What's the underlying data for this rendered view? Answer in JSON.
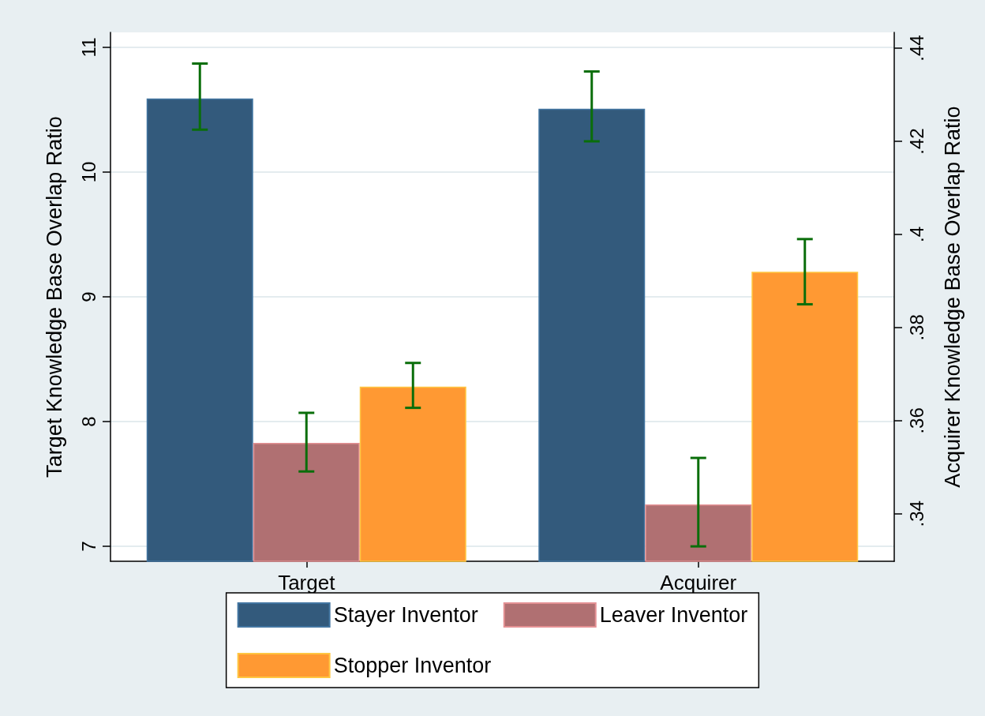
{
  "chart_data": {
    "type": "bar",
    "categories": [
      "Target",
      "Acquirer"
    ],
    "ylabel": "Target Knowledge Base Overlap Ratio",
    "y2label": "Acquirer Knowledge Base Overlap Ratio",
    "ylim": [
      6.88,
      11.12
    ],
    "yticks": [
      7,
      8,
      9,
      10,
      11
    ],
    "y2lim": [
      0.3298,
      0.4434
    ],
    "y2ticks": [
      {
        "value": 0.34,
        "label": ".34"
      },
      {
        "value": 0.36,
        "label": ".36"
      },
      {
        "value": 0.38,
        "label": ".38"
      },
      {
        "value": 0.4,
        "label": ".4"
      },
      {
        "value": 0.42,
        "label": ".42"
      },
      {
        "value": 0.44,
        "label": ".44"
      }
    ],
    "series": [
      {
        "name": "Stayer Inventor",
        "color": "#335a7c",
        "values": [
          10.59,
          null
        ],
        "errors": [
          [
            10.34,
            10.87
          ],
          null
        ]
      },
      {
        "name": "Leaver Inventor",
        "color": "#b07072",
        "values": [
          7.83,
          null
        ],
        "errors": [
          [
            7.6,
            8.07
          ],
          null
        ]
      },
      {
        "name": "Stopper Inventor",
        "color": "#ff9933",
        "values": [
          8.28,
          null
        ],
        "errors": [
          [
            8.11,
            8.47
          ],
          null
        ]
      },
      {
        "color": "#335a7c",
        "axis": "y2",
        "values": [
          null,
          0.427
        ],
        "errors": [
          null,
          [
            0.42,
            0.435
          ]
        ]
      },
      {
        "color": "#b07072",
        "axis": "y2",
        "values": [
          null,
          0.342
        ],
        "errors": [
          null,
          [
            0.333,
            0.352
          ]
        ]
      },
      {
        "color": "#ff9933",
        "axis": "y2",
        "values": [
          null,
          0.392
        ],
        "errors": [
          null,
          [
            0.385,
            0.399
          ]
        ]
      }
    ],
    "grid": "y",
    "legend": "bottom"
  }
}
